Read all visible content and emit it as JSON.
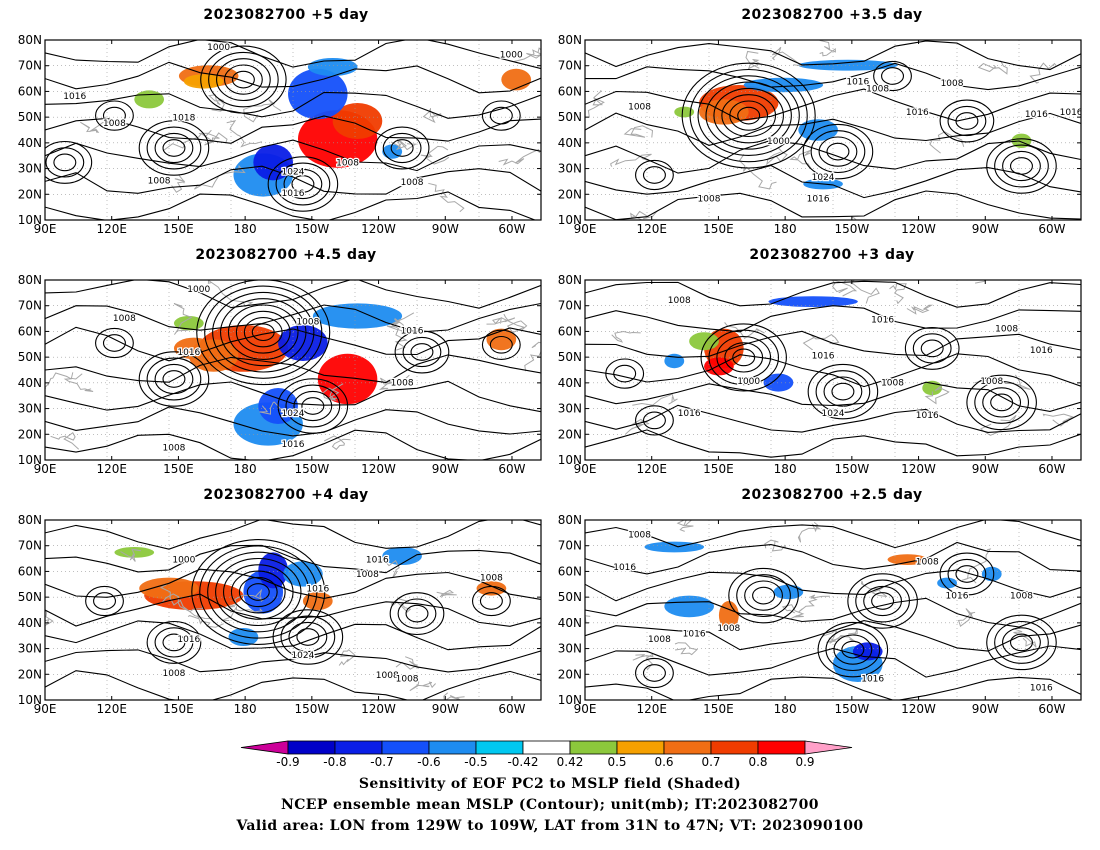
{
  "panels": [
    {
      "title": "2023082700  +5 day",
      "labels": [
        "1000",
        "1000",
        "1016",
        "1008",
        "1018",
        "1008",
        "1024",
        "1016",
        "1008",
        "1008"
      ]
    },
    {
      "title": "2023082700  +3.5 day",
      "labels": [
        "1008",
        "1016",
        "1008",
        "1016",
        "1008",
        "1016",
        "1000",
        "1024",
        "1016",
        "1008",
        "1016"
      ]
    },
    {
      "title": "2023082700  +4.5 day",
      "labels": [
        "1000",
        "1008",
        "1016",
        "1008",
        "1016",
        "1008",
        "1024",
        "1016",
        "1008"
      ]
    },
    {
      "title": "2023082700  +3 day",
      "labels": [
        "1008",
        "1016",
        "1008",
        "1000",
        "1016",
        "1008",
        "1016",
        "1024",
        "1016",
        "1016",
        "1008"
      ]
    },
    {
      "title": "2023082700  +4 day",
      "labels": [
        "1000",
        "1016",
        "1008",
        "1008",
        "1016",
        "1016",
        "1008",
        "1024",
        "1008",
        "1008"
      ]
    },
    {
      "title": "2023082700  +2.5 day",
      "labels": [
        "1008",
        "1016",
        "1008",
        "1016",
        "1008",
        "1008",
        "1016",
        "1016",
        "1008",
        "1016"
      ]
    }
  ],
  "axes": {
    "lat_labels": [
      "10N",
      "20N",
      "30N",
      "40N",
      "50N",
      "60N",
      "70N",
      "80N"
    ],
    "lon_labels": [
      "90E",
      "120E",
      "150E",
      "180",
      "150W",
      "120W",
      "90W",
      "60W"
    ]
  },
  "colorbar": {
    "labels": [
      "-0.9",
      "-0.8",
      "-0.7",
      "-0.6",
      "-0.5",
      "-0.42",
      "0.42",
      "0.5",
      "0.6",
      "0.7",
      "0.8",
      "0.9"
    ],
    "colors": [
      "#cc0099",
      "#0000c8",
      "#0a1ee6",
      "#1450fa",
      "#1e8cf0",
      "#00c8f0",
      "#ffffff",
      "#8cc83c",
      "#f5a000",
      "#f06e14",
      "#f03c00",
      "#ff0000",
      "#ffa0c8"
    ]
  },
  "caption": {
    "line1": "Sensitivity of EOF PC2 to MSLP field (Shaded)",
    "line2": "NCEP ensemble mean MSLP (Contour); unit(mb); IT:2023082700",
    "line3": "Valid area: LON from 129W to 109W, LAT from 31N to 47N; VT: 2023090100"
  }
}
